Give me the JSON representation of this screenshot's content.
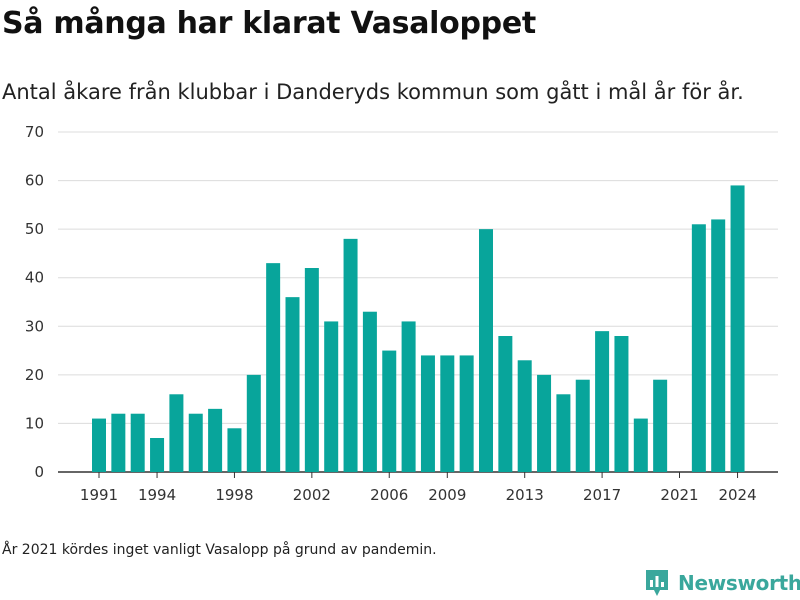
{
  "title": "Så många har klarat Vasaloppet",
  "subtitle": "Antal åkare från klubbar i Danderyds kommun som gått i mål år för år.",
  "note": "År 2021 kördes inget vanligt Vasalopp på grund av pandemin.",
  "brand": {
    "name": "Newsworthy",
    "icon": "newsworthy-logo-icon",
    "color": "#3aa79c"
  },
  "chart_data": {
    "type": "bar",
    "bar_color": "#08a59b",
    "x": [
      1991,
      1992,
      1993,
      1994,
      1995,
      1996,
      1997,
      1998,
      1999,
      2000,
      2001,
      2002,
      2003,
      2004,
      2005,
      2006,
      2007,
      2008,
      2009,
      2010,
      2011,
      2012,
      2013,
      2014,
      2015,
      2016,
      2017,
      2018,
      2019,
      2020,
      2021,
      2022,
      2023,
      2024
    ],
    "values": [
      11,
      12,
      12,
      7,
      16,
      12,
      13,
      9,
      20,
      43,
      36,
      42,
      31,
      48,
      33,
      25,
      31,
      24,
      24,
      24,
      50,
      28,
      23,
      20,
      16,
      19,
      29,
      28,
      11,
      19,
      null,
      51,
      52,
      59
    ],
    "x_tick_labels": [
      "1991",
      "1994",
      "1998",
      "2002",
      "2006",
      "2009",
      "2013",
      "2017",
      "2021",
      "2024"
    ],
    "y_ticks": [
      0,
      10,
      20,
      30,
      40,
      50,
      60,
      70
    ],
    "ylim": [
      0,
      70
    ],
    "grid": true
  }
}
